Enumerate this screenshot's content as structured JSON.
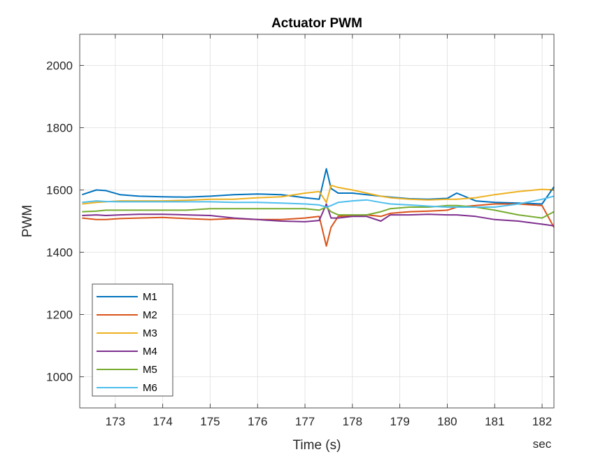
{
  "chart_data": {
    "type": "line",
    "title": "Actuator PWM",
    "xlabel": "Time (s)",
    "ylabel": "PWM",
    "x_unit_label": "sec",
    "xlim": [
      172.25,
      182.25
    ],
    "ylim": [
      900,
      2100
    ],
    "xticks": [
      173,
      174,
      175,
      176,
      177,
      178,
      179,
      180,
      181,
      182
    ],
    "yticks": [
      1000,
      1200,
      1400,
      1600,
      1800,
      2000
    ],
    "grid": true,
    "legend_location": "bottom-left",
    "series": [
      {
        "name": "M1",
        "color": "#0072BD",
        "x": [
          172.3,
          172.6,
          172.8,
          173.1,
          173.5,
          174.0,
          174.5,
          175.0,
          175.5,
          176.0,
          176.5,
          177.0,
          177.3,
          177.45,
          177.55,
          177.7,
          178.0,
          178.3,
          178.6,
          178.8,
          179.2,
          179.6,
          180.0,
          180.2,
          180.6,
          181.0,
          181.5,
          182.0,
          182.25
        ],
        "y": [
          1585,
          1600,
          1598,
          1585,
          1580,
          1578,
          1577,
          1580,
          1585,
          1587,
          1585,
          1575,
          1570,
          1668,
          1605,
          1590,
          1590,
          1585,
          1580,
          1577,
          1572,
          1570,
          1573,
          1590,
          1565,
          1560,
          1558,
          1555,
          1610
        ]
      },
      {
        "name": "M2",
        "color": "#D95319",
        "x": [
          172.3,
          172.6,
          172.8,
          173.1,
          173.5,
          174.0,
          174.5,
          175.0,
          175.5,
          176.0,
          176.5,
          177.0,
          177.3,
          177.45,
          177.55,
          177.7,
          178.0,
          178.3,
          178.6,
          178.8,
          179.2,
          179.6,
          180.0,
          180.2,
          180.6,
          181.0,
          181.5,
          182.0,
          182.25
        ],
        "y": [
          1510,
          1505,
          1505,
          1508,
          1510,
          1512,
          1508,
          1505,
          1508,
          1505,
          1505,
          1510,
          1515,
          1420,
          1480,
          1515,
          1518,
          1520,
          1515,
          1525,
          1530,
          1532,
          1535,
          1545,
          1550,
          1555,
          1555,
          1550,
          1480
        ]
      },
      {
        "name": "M3",
        "color": "#EDB120",
        "x": [
          172.3,
          172.6,
          172.8,
          173.1,
          173.5,
          174.0,
          174.5,
          175.0,
          175.5,
          176.0,
          176.5,
          177.0,
          177.3,
          177.45,
          177.55,
          177.7,
          178.0,
          178.3,
          178.6,
          178.8,
          179.2,
          179.6,
          180.0,
          180.2,
          180.6,
          181.0,
          181.5,
          182.0,
          182.25
        ],
        "y": [
          1555,
          1560,
          1562,
          1565,
          1565,
          1565,
          1567,
          1570,
          1570,
          1575,
          1578,
          1590,
          1595,
          1560,
          1615,
          1608,
          1600,
          1590,
          1580,
          1575,
          1570,
          1568,
          1570,
          1570,
          1575,
          1585,
          1595,
          1602,
          1600
        ]
      },
      {
        "name": "M4",
        "color": "#7E2F8E",
        "x": [
          172.3,
          172.6,
          172.8,
          173.1,
          173.5,
          174.0,
          174.5,
          175.0,
          175.5,
          176.0,
          176.5,
          177.0,
          177.3,
          177.45,
          177.55,
          177.7,
          178.0,
          178.3,
          178.6,
          178.8,
          179.2,
          179.6,
          180.0,
          180.2,
          180.6,
          181.0,
          181.5,
          182.0,
          182.25
        ],
        "y": [
          1518,
          1520,
          1518,
          1520,
          1522,
          1522,
          1520,
          1518,
          1510,
          1505,
          1500,
          1498,
          1502,
          1555,
          1510,
          1510,
          1515,
          1515,
          1500,
          1520,
          1520,
          1522,
          1520,
          1520,
          1515,
          1505,
          1500,
          1490,
          1485
        ]
      },
      {
        "name": "M5",
        "color": "#77AC30",
        "x": [
          172.3,
          172.6,
          172.8,
          173.1,
          173.5,
          174.0,
          174.5,
          175.0,
          175.5,
          176.0,
          176.5,
          177.0,
          177.3,
          177.45,
          177.55,
          177.7,
          178.0,
          178.3,
          178.6,
          178.8,
          179.2,
          179.6,
          180.0,
          180.2,
          180.6,
          181.0,
          181.5,
          182.0,
          182.25
        ],
        "y": [
          1530,
          1532,
          1535,
          1535,
          1535,
          1535,
          1535,
          1540,
          1540,
          1540,
          1540,
          1540,
          1535,
          1545,
          1530,
          1520,
          1520,
          1520,
          1530,
          1540,
          1545,
          1545,
          1550,
          1550,
          1545,
          1535,
          1520,
          1510,
          1530
        ]
      },
      {
        "name": "M6",
        "color": "#4DBEEE",
        "x": [
          172.3,
          172.6,
          172.8,
          173.1,
          173.5,
          174.0,
          174.5,
          175.0,
          175.5,
          176.0,
          176.5,
          177.0,
          177.3,
          177.45,
          177.55,
          177.7,
          178.0,
          178.3,
          178.6,
          178.8,
          179.2,
          179.6,
          180.0,
          180.2,
          180.6,
          181.0,
          181.5,
          182.0,
          182.25
        ],
        "y": [
          1560,
          1565,
          1563,
          1562,
          1562,
          1562,
          1562,
          1562,
          1560,
          1560,
          1558,
          1555,
          1552,
          1545,
          1550,
          1560,
          1565,
          1568,
          1560,
          1555,
          1552,
          1548,
          1545,
          1545,
          1545,
          1545,
          1555,
          1570,
          1580
        ]
      }
    ]
  }
}
